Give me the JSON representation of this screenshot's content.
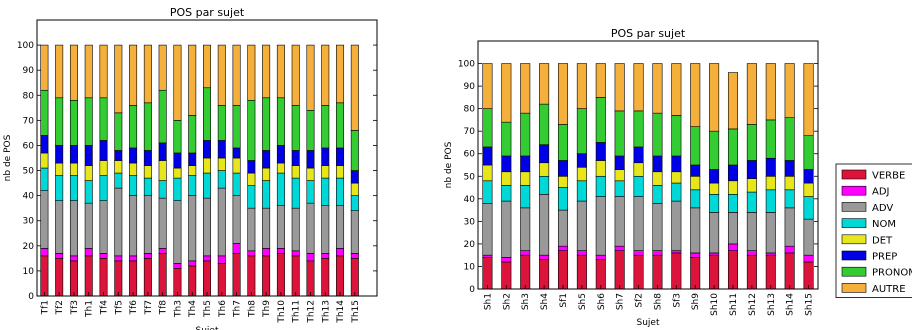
{
  "chart_data": [
    {
      "type": "bar",
      "stacked": true,
      "title": "POS par sujet",
      "xlabel": "Sujet",
      "ylabel": "nb de POS",
      "ylim": [
        0,
        110
      ],
      "yticks": [
        0,
        10,
        20,
        30,
        40,
        50,
        60,
        70,
        80,
        90,
        100
      ],
      "grid": false,
      "categories": [
        "Tf1",
        "Tf2",
        "Tf3",
        "Th1",
        "Tf4",
        "Tf5",
        "Tf6",
        "Tf7",
        "Tf8",
        "Th3",
        "Th4",
        "Th5",
        "Th6",
        "Th7",
        "Th8",
        "Th9",
        "Th10",
        "Th11",
        "Th12",
        "Th13",
        "Th14",
        "Th15"
      ],
      "series": [
        {
          "name": "VERBE",
          "color": "#dc143c",
          "values": [
            16,
            15,
            14,
            16,
            15,
            14,
            14,
            15,
            17,
            11,
            12,
            14,
            13,
            17,
            16,
            16,
            17,
            16,
            14,
            15,
            16,
            15
          ]
        },
        {
          "name": "ADJ",
          "color": "#ff00ff",
          "values": [
            3,
            2,
            2,
            3,
            2,
            2,
            2,
            2,
            2,
            2,
            2,
            2,
            3,
            4,
            2,
            3,
            2,
            2,
            3,
            2,
            3,
            2
          ]
        },
        {
          "name": "ADV",
          "color": "#999999",
          "values": [
            23,
            21,
            22,
            18,
            21,
            27,
            24,
            23,
            20,
            25,
            26,
            23,
            27,
            19,
            17,
            16,
            17,
            17,
            20,
            19,
            17,
            17
          ]
        },
        {
          "name": "NOM",
          "color": "#00d8d8",
          "values": [
            9,
            10,
            10,
            9,
            10,
            6,
            8,
            7,
            7,
            9,
            8,
            10,
            7,
            9,
            9,
            11,
            13,
            12,
            9,
            11,
            11,
            6
          ]
        },
        {
          "name": "DET",
          "color": "#e6e61a",
          "values": [
            6,
            5,
            5,
            6,
            6,
            5,
            5,
            5,
            8,
            4,
            4,
            6,
            5,
            6,
            5,
            5,
            4,
            5,
            5,
            5,
            5,
            5
          ]
        },
        {
          "name": "PREP",
          "color": "#0000e6",
          "values": [
            7,
            7,
            7,
            8,
            8,
            4,
            6,
            6,
            7,
            6,
            5,
            7,
            7,
            4,
            5,
            7,
            7,
            6,
            7,
            7,
            7,
            5
          ]
        },
        {
          "name": "PRONOM",
          "color": "#33cc33",
          "values": [
            18,
            19,
            18,
            19,
            17,
            15,
            17,
            19,
            21,
            13,
            15,
            21,
            14,
            17,
            24,
            21,
            19,
            18,
            16,
            17,
            18,
            16
          ]
        },
        {
          "name": "AUTRE",
          "color": "#f5b03c",
          "values": [
            18,
            21,
            22,
            21,
            21,
            27,
            24,
            23,
            18,
            30,
            28,
            17,
            24,
            24,
            22,
            21,
            21,
            24,
            26,
            24,
            23,
            34
          ]
        }
      ]
    },
    {
      "type": "bar",
      "stacked": true,
      "title": "POS par sujet",
      "xlabel": "Sujet",
      "ylabel": "nb de POS",
      "ylim": [
        0,
        110
      ],
      "yticks": [
        0,
        10,
        20,
        30,
        40,
        50,
        60,
        70,
        80,
        90,
        100
      ],
      "grid": false,
      "legend": "right",
      "categories": [
        "Sh1",
        "Sh2",
        "Sh3",
        "Sh4",
        "Sf1",
        "Sh5",
        "Sh6",
        "Sh7",
        "Sf2",
        "Sh8",
        "Sf3",
        "Sh9",
        "Sh10",
        "Sh11",
        "Sh12",
        "Sh13",
        "Sh14",
        "Sh15"
      ],
      "series": [
        {
          "name": "VERBE",
          "color": "#dc143c",
          "values": [
            14,
            12,
            15,
            13,
            17,
            15,
            13,
            17,
            15,
            15,
            16,
            14,
            15,
            17,
            15,
            15,
            16,
            12
          ]
        },
        {
          "name": "ADJ",
          "color": "#ff00ff",
          "values": [
            1,
            2,
            2,
            2,
            2,
            2,
            2,
            2,
            2,
            2,
            1,
            2,
            1,
            3,
            2,
            1,
            3,
            3
          ]
        },
        {
          "name": "ADV",
          "color": "#999999",
          "values": [
            23,
            25,
            19,
            27,
            16,
            22,
            26,
            22,
            24,
            21,
            22,
            20,
            18,
            14,
            17,
            18,
            17,
            16
          ]
        },
        {
          "name": "NOM",
          "color": "#00d8d8",
          "values": [
            10,
            7,
            10,
            8,
            10,
            9,
            9,
            7,
            9,
            8,
            8,
            8,
            8,
            8,
            9,
            10,
            8,
            10
          ]
        },
        {
          "name": "DET",
          "color": "#e6e61a",
          "values": [
            7,
            6,
            6,
            6,
            5,
            6,
            7,
            5,
            6,
            6,
            5,
            6,
            5,
            6,
            6,
            6,
            6,
            6
          ]
        },
        {
          "name": "PREP",
          "color": "#0000e6",
          "values": [
            8,
            7,
            7,
            8,
            7,
            6,
            8,
            6,
            7,
            7,
            7,
            5,
            6,
            7,
            8,
            8,
            7,
            6
          ]
        },
        {
          "name": "PRONOM",
          "color": "#33cc33",
          "values": [
            17,
            15,
            19,
            18,
            16,
            20,
            20,
            20,
            16,
            19,
            18,
            17,
            17,
            16,
            16,
            17,
            19,
            15
          ]
        },
        {
          "name": "AUTRE",
          "color": "#f5b03c",
          "values": [
            20,
            26,
            22,
            18,
            27,
            20,
            15,
            21,
            21,
            22,
            23,
            28,
            30,
            25,
            27,
            25,
            24,
            32
          ]
        }
      ]
    }
  ]
}
